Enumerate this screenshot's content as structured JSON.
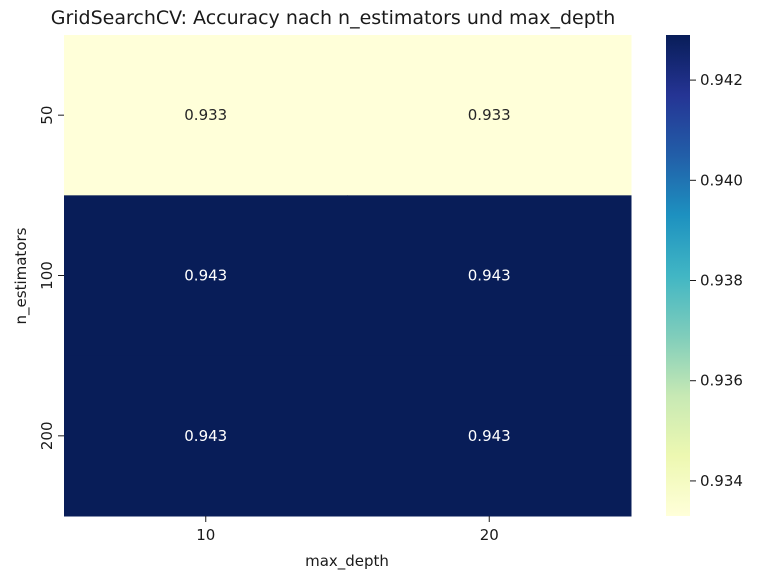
{
  "chart_data": {
    "type": "heatmap",
    "title": "GridSearchCV: Accuracy nach n_estimators und max_depth",
    "xlabel": "max_depth",
    "ylabel": "n_estimators",
    "x_categories": [
      "10",
      "20"
    ],
    "y_categories": [
      "50",
      "100",
      "200"
    ],
    "values": [
      [
        0.933,
        0.933
      ],
      [
        0.943,
        0.943
      ],
      [
        0.943,
        0.943
      ]
    ],
    "cell_labels": [
      [
        "0.933",
        "0.933"
      ],
      [
        "0.943",
        "0.943"
      ],
      [
        "0.943",
        "0.943"
      ]
    ],
    "colormap": "YlGnBu",
    "colorbar": {
      "range": [
        0.9333,
        0.9429
      ],
      "ticks": [
        0.934,
        0.936,
        0.938,
        0.94,
        0.942
      ],
      "tick_labels": [
        "0.934",
        "0.936",
        "0.938",
        "0.940",
        "0.942"
      ],
      "placement": "right"
    },
    "grid": false
  }
}
